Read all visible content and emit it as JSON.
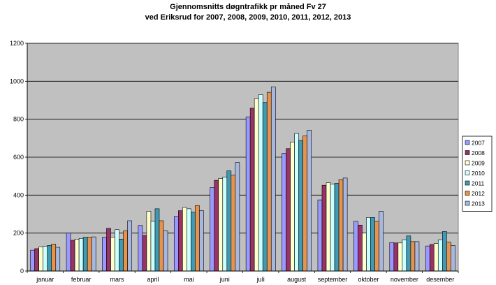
{
  "chart_data": {
    "type": "bar",
    "title_line1": "Gjennomsnitts døgntrafikk pr måned Fv 27",
    "title_line2": "ved Eriksrud for 2007,  2008, 2009, 2010, 2011, 2012, 2013",
    "xlabel": "",
    "ylabel": "",
    "ylim": [
      0,
      1200
    ],
    "yticks": [
      "0",
      "200",
      "400",
      "600",
      "800",
      "1000",
      "1200"
    ],
    "grid": true,
    "legend_position": "right",
    "plot_background": "#c0c0c0",
    "categories": [
      "januar",
      "februar",
      "mars",
      "april",
      "mai",
      "juni",
      "juli",
      "august",
      "september",
      "oktober",
      "november",
      "desember"
    ],
    "series": [
      {
        "name": "2007",
        "color": "#9999ff",
        "values": [
          110,
          200,
          178,
          240,
          288,
          440,
          812,
          620,
          375,
          262,
          150,
          132
        ]
      },
      {
        "name": "2008",
        "color": "#993366",
        "values": [
          118,
          162,
          225,
          188,
          318,
          478,
          858,
          645,
          452,
          242,
          148,
          140
        ]
      },
      {
        "name": "2009",
        "color": "#ffffcc",
        "values": [
          128,
          168,
          178,
          315,
          335,
          488,
          908,
          680,
          465,
          200,
          148,
          145
        ]
      },
      {
        "name": "2010",
        "color": "#ccffff",
        "values": [
          130,
          172,
          218,
          262,
          328,
          495,
          930,
          725,
          458,
          282,
          165,
          165
        ]
      },
      {
        "name": "2011",
        "color": "#3e9bb5",
        "values": [
          135,
          178,
          168,
          328,
          310,
          528,
          888,
          688,
          462,
          282,
          185,
          208
        ]
      },
      {
        "name": "2012",
        "color": "#e8924a",
        "values": [
          142,
          178,
          212,
          265,
          345,
          505,
          942,
          712,
          482,
          262,
          155,
          152
        ]
      },
      {
        "name": "2013",
        "color": "#a6b8e0",
        "values": [
          125,
          180,
          265,
          212,
          318,
          572,
          970,
          742,
          490,
          315,
          155,
          135
        ]
      }
    ]
  }
}
